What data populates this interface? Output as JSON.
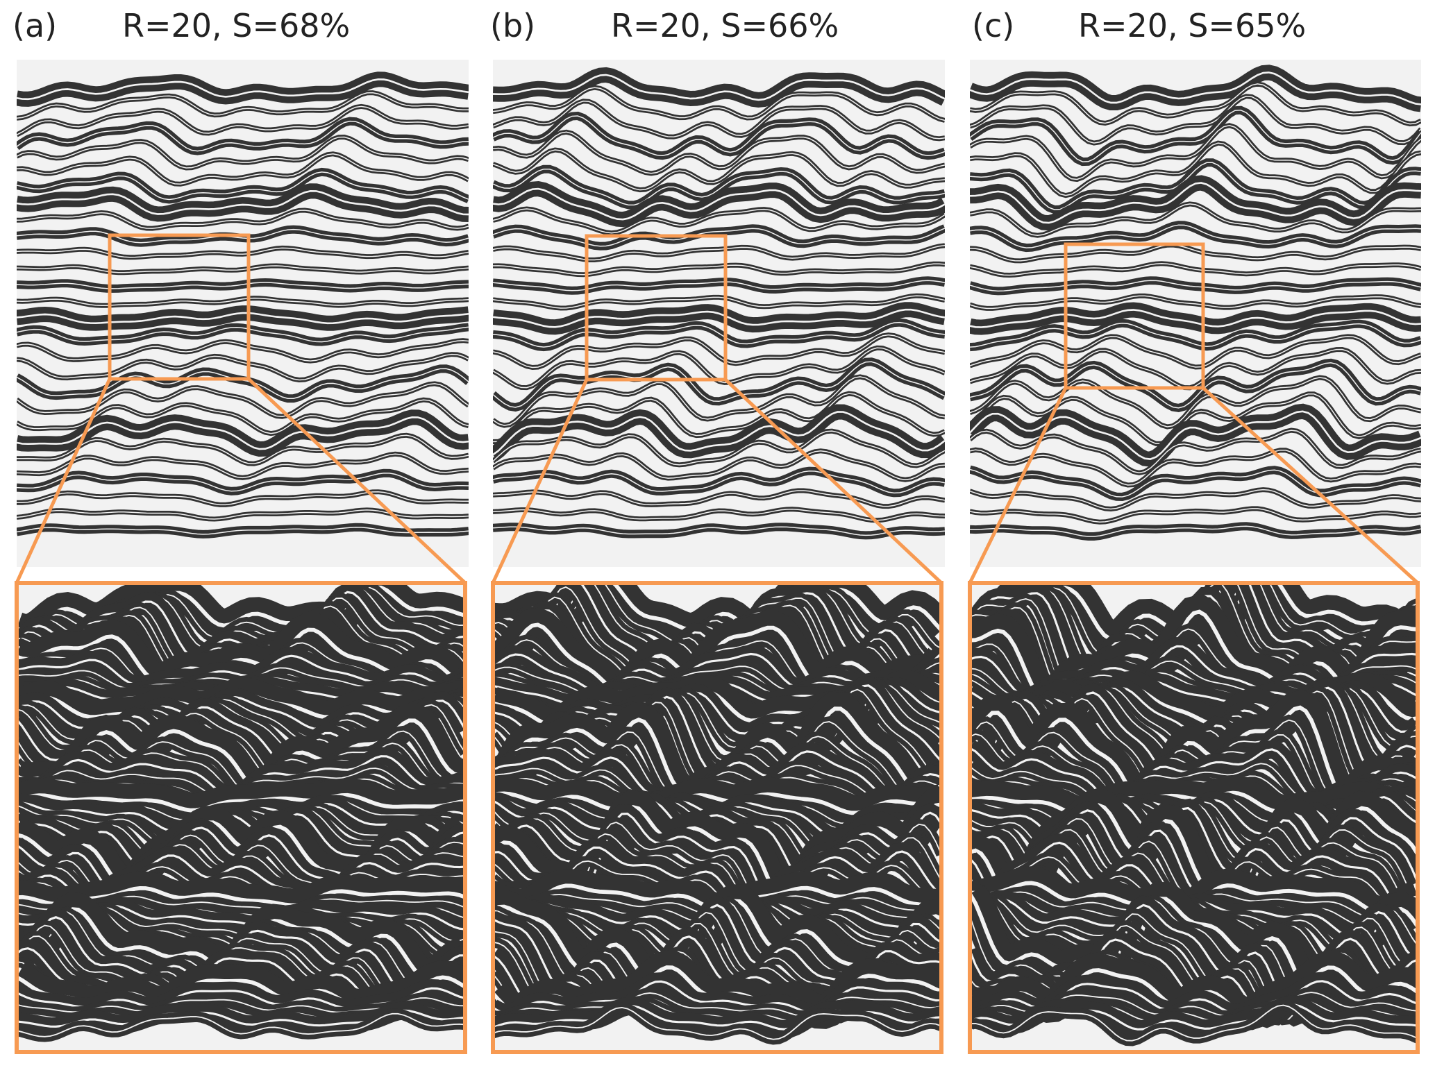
{
  "panels": [
    {
      "tag": "(a)",
      "title": "R=20, S=68%"
    },
    {
      "tag": "(b)",
      "title": "R=20, S=66%"
    },
    {
      "tag": "(c)",
      "title": "R=20, S=65%"
    }
  ],
  "colors": {
    "layer": "#333333",
    "background": "#f2f2f2",
    "highlight": "#f79a52"
  }
}
